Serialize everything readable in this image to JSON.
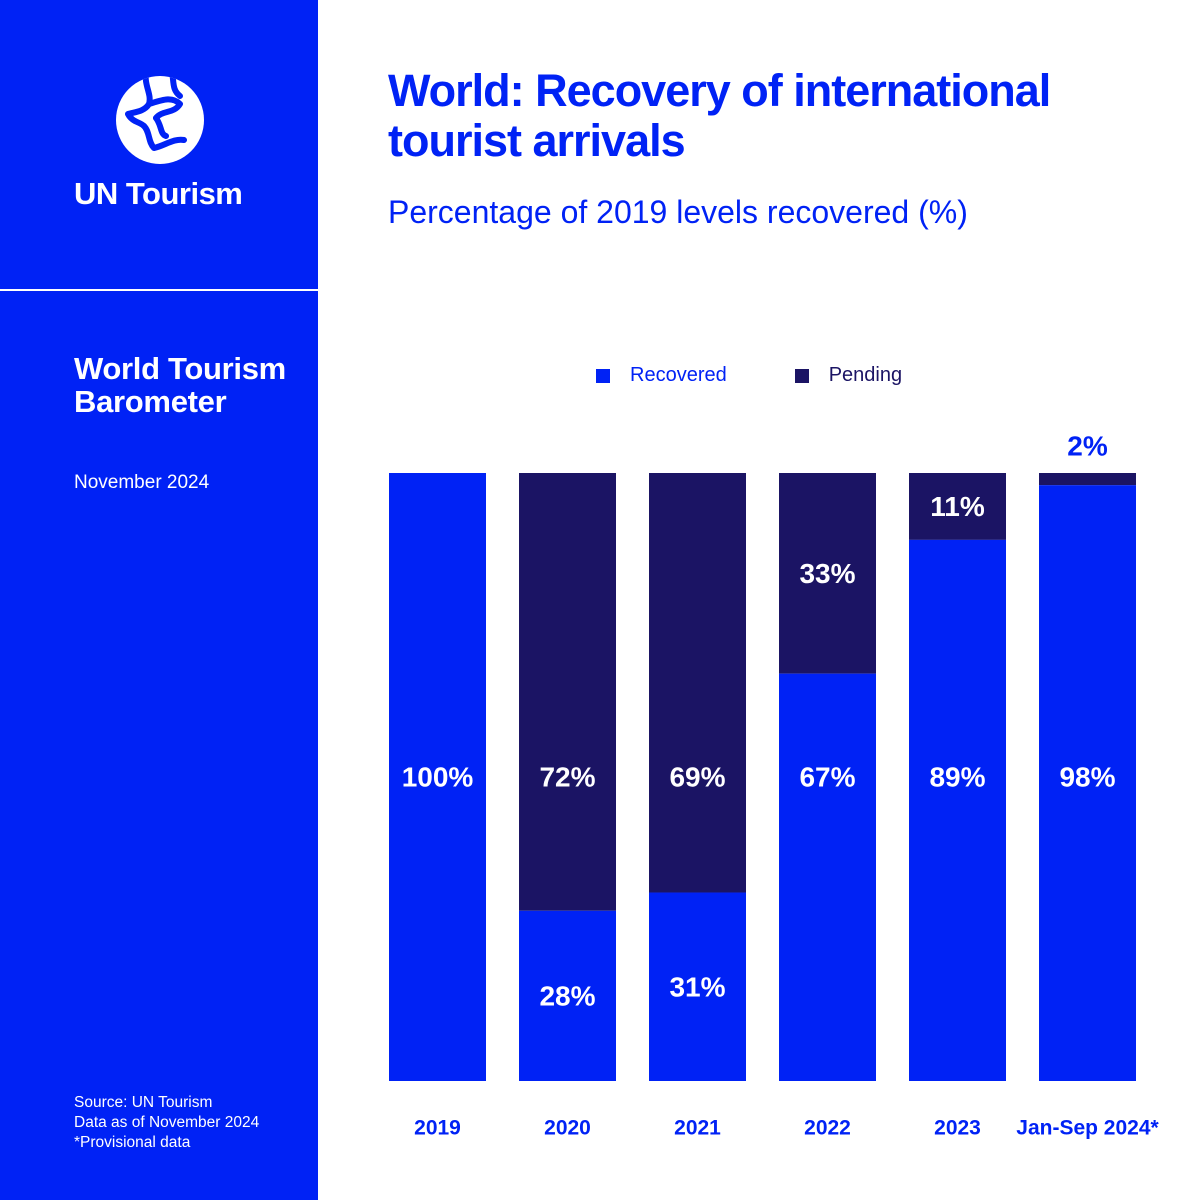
{
  "brand": {
    "name": "UN Tourism"
  },
  "report": {
    "title": "World Tourism Barometer",
    "date": "November 2024"
  },
  "footnotes": [
    "Source: UN Tourism",
    "Data as of November 2024",
    "*Provisional data"
  ],
  "colors": {
    "recovered": "#0022f5",
    "pending": "#1b1464",
    "sidebar": "#0022f5",
    "label_inside": "#ffffff",
    "label_outside": "#0022f5"
  },
  "chart_data": {
    "type": "bar",
    "stacked": true,
    "title": "World: Recovery of international tourist arrivals",
    "subtitle": "Percentage of 2019 levels recovered (%)",
    "categories": [
      "2019",
      "2020",
      "2021",
      "2022",
      "2023",
      "Jan-Sep 2024*"
    ],
    "series": [
      {
        "name": "Recovered",
        "values": [
          100,
          28,
          31,
          67,
          89,
          98
        ],
        "labels": [
          "100%",
          "28%",
          "31%",
          "67%",
          "89%",
          "98%"
        ]
      },
      {
        "name": "Pending",
        "values": [
          0,
          72,
          69,
          33,
          11,
          2
        ],
        "labels": [
          "",
          "72%",
          "69%",
          "33%",
          "11%",
          "2%"
        ]
      }
    ],
    "ylim": [
      0,
      100
    ],
    "grid": false,
    "legend": "top-center"
  }
}
